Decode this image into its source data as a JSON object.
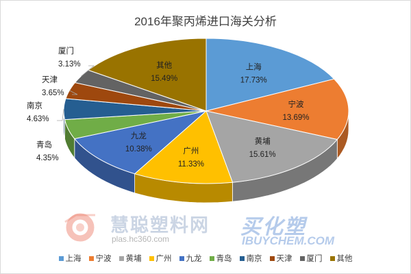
{
  "chart_data": {
    "type": "pie",
    "title": "2016年聚丙烯进口海关分析",
    "categories": [
      "上海",
      "宁波",
      "黄埔",
      "广州",
      "九龙",
      "青岛",
      "南京",
      "天津",
      "厦门",
      "其他"
    ],
    "values": [
      17.73,
      13.69,
      15.61,
      11.33,
      10.38,
      4.35,
      4.63,
      3.65,
      3.13,
      15.49
    ],
    "value_labels": [
      "17.73%",
      "13.69%",
      "15.61%",
      "11.33%",
      "10.38%",
      "4.35%",
      "4.63%",
      "3.65%",
      "3.13%",
      "15.49%"
    ],
    "colors": [
      "#5B9BD5",
      "#ED7D31",
      "#A5A5A5",
      "#FFC000",
      "#4472C4",
      "#70AD47",
      "#255E91",
      "#9E480E",
      "#636363",
      "#997300"
    ],
    "legend_position": "bottom",
    "style": "3d"
  },
  "watermarks": {
    "left_text": "慧聪塑料网",
    "left_url": "plas.hc360.com",
    "right_text": "买化塑",
    "right_url": "IBUYCHEM.COM"
  }
}
